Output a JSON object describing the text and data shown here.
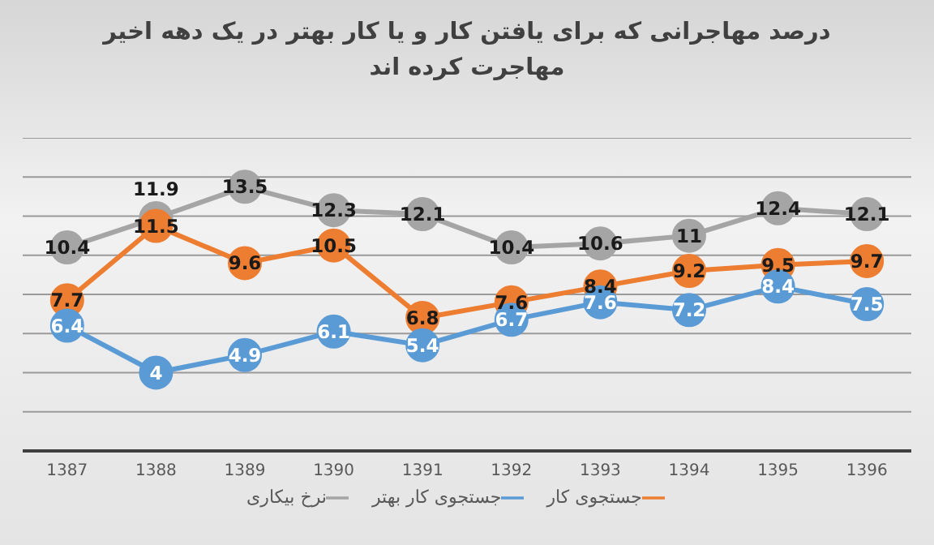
{
  "chart_data": {
    "type": "line",
    "title": "درصد مهاجرانی که برای یافتن کار و یا کار بهتر در یک دهه اخیر مهاجرت کرده اند",
    "categories": [
      "1387",
      "1388",
      "1389",
      "1390",
      "1391",
      "1392",
      "1393",
      "1394",
      "1395",
      "1396"
    ],
    "series": [
      {
        "name": "جستجوی کار بهتر",
        "color": "#5b9bd5",
        "values": [
          6.4,
          4,
          4.9,
          6.1,
          5.4,
          6.7,
          7.6,
          7.2,
          8.4,
          7.5
        ]
      },
      {
        "name": "جستجوی کار",
        "color": "#ed7d31",
        "values": [
          7.7,
          11.5,
          9.6,
          10.5,
          6.8,
          7.6,
          8.4,
          9.2,
          9.5,
          9.7
        ]
      },
      {
        "name": "نرخ بیکاری",
        "color": "#a5a5a5",
        "values": [
          10.4,
          11.9,
          13.5,
          12.3,
          12.1,
          10.4,
          10.6,
          11,
          12.4,
          12.1
        ]
      }
    ],
    "ylim": [
      0,
      16
    ],
    "yticks": [
      {
        "value": 0,
        "label": null
      },
      {
        "value": 2,
        "label": null
      },
      {
        "value": 4,
        "label": null
      },
      {
        "value": 6,
        "label": null
      },
      {
        "value": 8,
        "label": null
      },
      {
        "value": 10,
        "label": null
      },
      {
        "value": 12,
        "label": null
      },
      {
        "value": 14,
        "label": null
      },
      {
        "value": 16,
        "label": null
      }
    ],
    "tick_labels": "x",
    "grid": "y",
    "legend": "bottom",
    "marker": "circle",
    "line_style": "solid",
    "data_labels": true
  }
}
